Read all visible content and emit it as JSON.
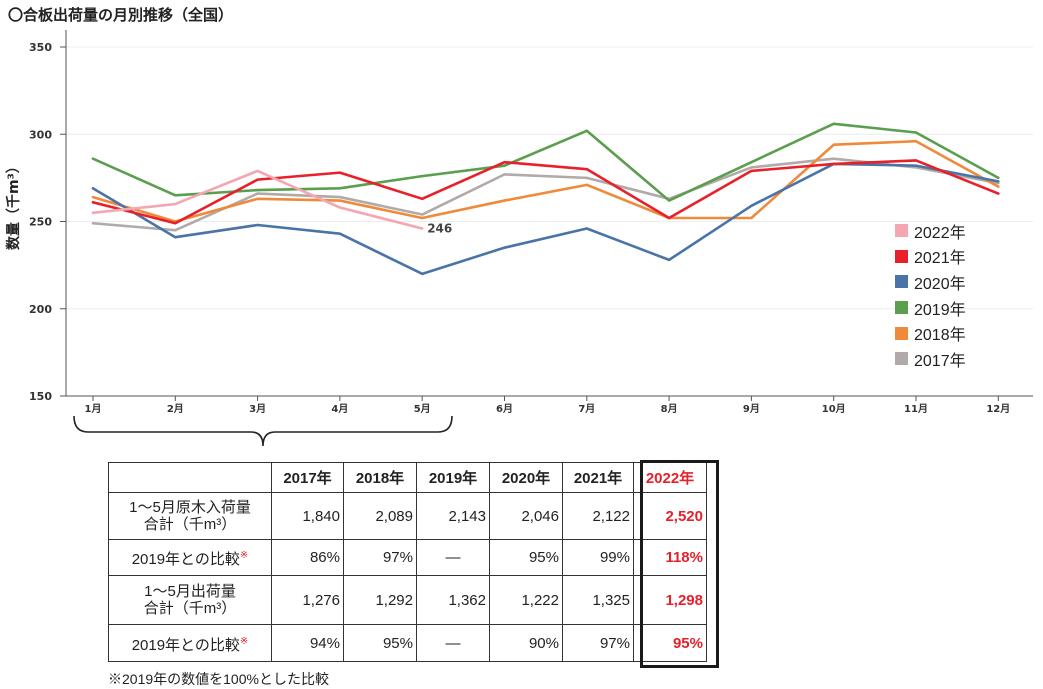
{
  "chart_data": {
    "type": "line",
    "title": "〇合板出荷量の月別推移（全国）",
    "ylabel": "数量（千m³）",
    "xlabel": "",
    "categories": [
      "1月",
      "2月",
      "3月",
      "4月",
      "5月",
      "6月",
      "7月",
      "8月",
      "9月",
      "10月",
      "11月",
      "12月"
    ],
    "ylim": [
      150,
      350
    ],
    "yticks": [
      150,
      200,
      250,
      300,
      350
    ],
    "grid": true,
    "legend_position": "right",
    "series": [
      {
        "name": "2022年",
        "color": "#f4a6b1",
        "values": [
          255,
          260,
          279,
          258,
          246,
          null,
          null,
          null,
          null,
          null,
          null,
          null
        ]
      },
      {
        "name": "2021年",
        "color": "#e8202a",
        "values": [
          261,
          249,
          274,
          278,
          263,
          284,
          280,
          252,
          279,
          283,
          285,
          266
        ]
      },
      {
        "name": "2020年",
        "color": "#4a74a8",
        "values": [
          269,
          241,
          248,
          243,
          220,
          235,
          246,
          228,
          259,
          283,
          282,
          273
        ]
      },
      {
        "name": "2019年",
        "color": "#5a9e4e",
        "values": [
          286,
          265,
          268,
          269,
          276,
          282,
          302,
          262,
          284,
          306,
          301,
          275
        ]
      },
      {
        "name": "2018年",
        "color": "#ee8a3a",
        "values": [
          264,
          250,
          263,
          262,
          252,
          262,
          271,
          252,
          252,
          294,
          296,
          270
        ]
      },
      {
        "name": "2017年",
        "color": "#b0aaa8",
        "values": [
          249,
          245,
          266,
          264,
          254,
          277,
          275,
          263,
          281,
          286,
          281,
          272
        ]
      }
    ],
    "annotations": [
      {
        "series": "2022年",
        "x": "5月",
        "label": "246"
      }
    ]
  },
  "table": {
    "headers": [
      "2017年",
      "2018年",
      "2019年",
      "2020年",
      "2021年",
      "2022年"
    ],
    "rows": [
      {
        "label": "1～5月原木入荷量",
        "label2": "合計（千m³）",
        "mark": "",
        "values": [
          "1,840",
          "2,089",
          "2,143",
          "2,046",
          "2,122",
          "2,520"
        ]
      },
      {
        "label": "2019年との比較",
        "label2": "",
        "mark": "※",
        "values": [
          "86%",
          "97%",
          "—",
          "95%",
          "99%",
          "118%"
        ]
      },
      {
        "label": "1～5月出荷量",
        "label2": "合計（千m³）",
        "mark": "",
        "values": [
          "1,276",
          "1,292",
          "1,362",
          "1,222",
          "1,325",
          "1,298"
        ]
      },
      {
        "label": "2019年との比較",
        "label2": "",
        "mark": "※",
        "values": [
          "94%",
          "95%",
          "—",
          "90%",
          "97%",
          "95%"
        ]
      }
    ],
    "footnote": "※2019年の数値を100%とした比較"
  }
}
